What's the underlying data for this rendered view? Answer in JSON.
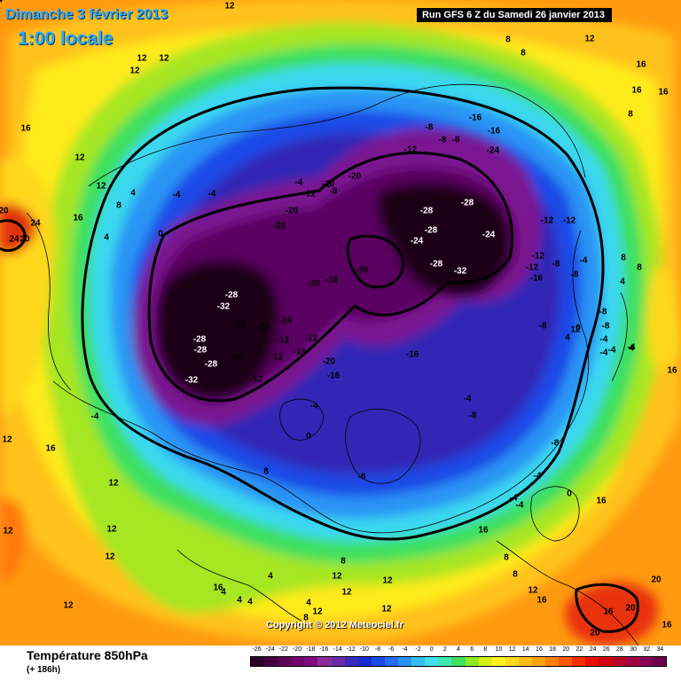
{
  "header": {
    "date": "Dimanche 3 février 2013",
    "time": "1:00 locale",
    "run": "Run GFS 6 Z du Samedi 26 janvier 2013"
  },
  "copyright": "Copyright © 2012 Meteociel.fr",
  "footer": {
    "field": "Température 850hPa",
    "forecast_hour": "(+ 186h)"
  },
  "scale": {
    "labels": [
      "-26",
      "-24",
      "-22",
      "-20",
      "-18",
      "-16",
      "-14",
      "-12",
      "-10",
      "-8",
      "-6",
      "-4",
      "-2",
      "0",
      "2",
      "4",
      "6",
      "8",
      "10",
      "12",
      "14",
      "16",
      "18",
      "20",
      "22",
      "24",
      "26",
      "28",
      "30",
      "32",
      "34"
    ],
    "colors": [
      "#2a0024",
      "#450040",
      "#5a0055",
      "#6e006a",
      "#820a80",
      "#8a2a98",
      "#6a2aa8",
      "#3a2ab8",
      "#1a2ad0",
      "#1a4ae8",
      "#2a6af0",
      "#2a92f5",
      "#34bef5",
      "#40e0f0",
      "#3ee8b0",
      "#40e060",
      "#90e820",
      "#d8ee10",
      "#fff020",
      "#ffd81a",
      "#ffbe10",
      "#ffa20a",
      "#ff8008",
      "#ff5806",
      "#f53004",
      "#e81003",
      "#d00010",
      "#b80028",
      "#a00040",
      "#880058",
      "#6a004a"
    ]
  },
  "map_labels": [
    {
      "text": "12"
    },
    {
      "text": "12"
    },
    {
      "text": "12"
    },
    {
      "text": "12"
    },
    {
      "text": "8"
    },
    {
      "text": "8"
    },
    {
      "text": "12"
    },
    {
      "text": "16"
    },
    {
      "text": "16"
    },
    {
      "text": "16"
    },
    {
      "text": "16"
    },
    {
      "text": "8"
    },
    {
      "text": "12"
    },
    {
      "text": "12"
    },
    {
      "text": "8"
    },
    {
      "text": "16"
    },
    {
      "text": "4"
    },
    {
      "text": "20"
    },
    {
      "text": "24"
    },
    {
      "text": "24"
    },
    {
      "text": "20"
    },
    {
      "text": "4"
    },
    {
      "text": "0"
    },
    {
      "text": "-4"
    },
    {
      "text": "-4"
    },
    {
      "text": "-4"
    },
    {
      "text": "-8"
    },
    {
      "text": "-8"
    },
    {
      "text": "-12"
    },
    {
      "text": "-20"
    },
    {
      "text": "-20"
    },
    {
      "text": "-20"
    },
    {
      "text": "-20"
    },
    {
      "text": "-12"
    },
    {
      "text": "-8"
    },
    {
      "text": "-8"
    },
    {
      "text": "-8"
    },
    {
      "text": "-16"
    },
    {
      "text": "-16"
    },
    {
      "text": "-24"
    },
    {
      "text": "-28"
    },
    {
      "text": "-28"
    },
    {
      "text": "-28"
    },
    {
      "text": "-24"
    },
    {
      "text": "-24"
    },
    {
      "text": "-28"
    },
    {
      "text": "-32"
    },
    {
      "text": "-20"
    },
    {
      "text": "-16"
    },
    {
      "text": "-20"
    },
    {
      "text": "-28"
    },
    {
      "text": "-32"
    },
    {
      "text": "-28"
    },
    {
      "text": "-28"
    },
    {
      "text": "-28"
    },
    {
      "text": "-32"
    },
    {
      "text": "-24"
    },
    {
      "text": "-24"
    },
    {
      "text": "-24"
    },
    {
      "text": "-20"
    },
    {
      "text": "-12"
    },
    {
      "text": "-12"
    },
    {
      "text": "-16"
    },
    {
      "text": "-12"
    },
    {
      "text": "-20"
    },
    {
      "text": "-16"
    },
    {
      "text": "-12"
    },
    {
      "text": "-16"
    },
    {
      "text": "-4"
    },
    {
      "text": "0"
    },
    {
      "text": "-12"
    },
    {
      "text": "-12"
    },
    {
      "text": "-12"
    },
    {
      "text": "-12"
    },
    {
      "text": "-8"
    },
    {
      "text": "-4"
    },
    {
      "text": "-8"
    },
    {
      "text": "-16"
    },
    {
      "text": "-8"
    },
    {
      "text": "8"
    },
    {
      "text": "8"
    },
    {
      "text": "4"
    },
    {
      "text": "-8"
    },
    {
      "text": "-8"
    },
    {
      "text": "0"
    },
    {
      "text": "4"
    },
    {
      "text": "-4"
    },
    {
      "text": "-4"
    },
    {
      "text": "4"
    },
    {
      "text": "-4"
    },
    {
      "text": "-4"
    },
    {
      "text": "-8"
    },
    {
      "text": "-8"
    },
    {
      "text": "-8"
    },
    {
      "text": "-4"
    },
    {
      "text": "-4"
    },
    {
      "text": "-4"
    },
    {
      "text": "-4"
    },
    {
      "text": "12"
    },
    {
      "text": "16"
    },
    {
      "text": "12"
    },
    {
      "text": "8"
    },
    {
      "text": "12"
    },
    {
      "text": "12"
    },
    {
      "text": "12"
    },
    {
      "text": "16"
    },
    {
      "text": "8"
    },
    {
      "text": "8"
    },
    {
      "text": "8"
    },
    {
      "text": "12"
    },
    {
      "text": "12"
    },
    {
      "text": "12"
    },
    {
      "text": "16"
    },
    {
      "text": "4"
    },
    {
      "text": "4"
    },
    {
      "text": "4"
    },
    {
      "text": "4"
    },
    {
      "text": "4"
    },
    {
      "text": "12"
    },
    {
      "text": "12"
    },
    {
      "text": "8"
    },
    {
      "text": "12"
    },
    {
      "text": "12"
    },
    {
      "text": "16"
    },
    {
      "text": "16"
    },
    {
      "text": "16"
    },
    {
      "text": "20"
    },
    {
      "text": "20"
    },
    {
      "text": "20"
    },
    {
      "text": "16"
    },
    {
      "text": "16"
    },
    {
      "text": "12"
    },
    {
      "text": "0"
    },
    {
      "text": "-4"
    },
    {
      "text": "4"
    }
  ]
}
